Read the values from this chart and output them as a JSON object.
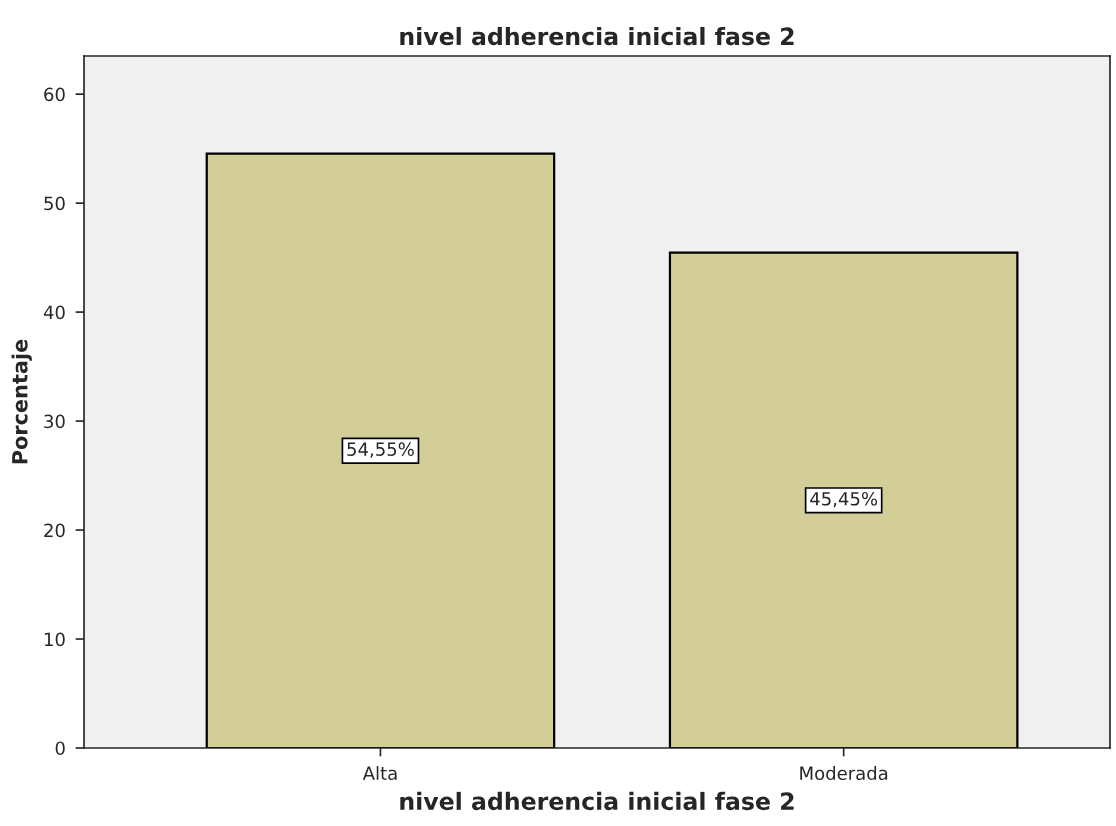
{
  "chart_data": {
    "type": "bar",
    "title": "nivel adherencia inicial fase 2",
    "xlabel": "nivel adherencia inicial fase 2",
    "ylabel": "Porcentaje",
    "categories": [
      "Alta",
      "Moderada"
    ],
    "values": [
      54.55,
      45.45
    ],
    "color": "#d3ce97",
    "value_labels": [
      "54,55%",
      "45,45%"
    ],
    "ylim": [
      0,
      63.5
    ],
    "yticks": [
      0,
      10,
      20,
      30,
      40,
      50,
      60
    ],
    "grid": false,
    "legend": false
  }
}
